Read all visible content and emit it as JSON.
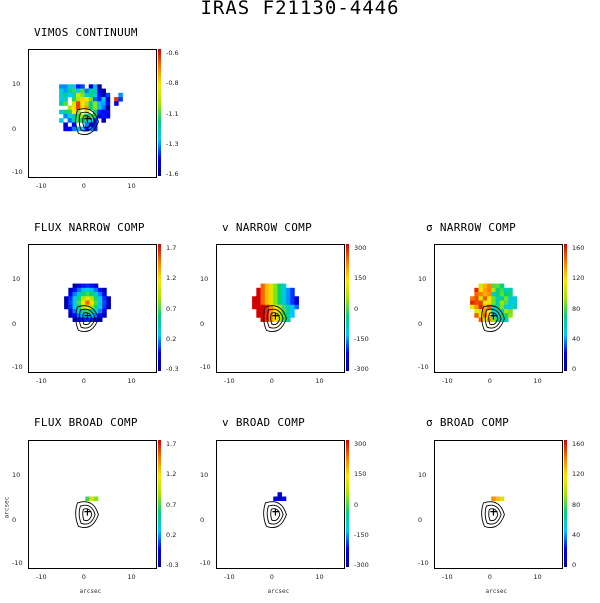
{
  "title": "IRAS F21130-4446",
  "axis_unit": "arcsec",
  "x_ticks": [
    "-10",
    "0",
    "10"
  ],
  "y_ticks": [
    "10",
    "0",
    "-10"
  ],
  "panels": [
    {
      "id": "vimos-continuum",
      "title": "VIMOS CONTINUUM",
      "cbar": [
        "-0.6",
        "-0.8",
        "-1.1",
        "-1.3",
        "-1.6"
      ],
      "map": "continuum",
      "contours": true
    },
    {
      "id": "flux-narrow",
      "title": "FLUX NARROW COMP",
      "cbar": [
        "1.7",
        "1.2",
        "0.7",
        "0.2",
        "-0.3"
      ],
      "map": "flux_narrow",
      "contours": true
    },
    {
      "id": "v-narrow",
      "title": "v NARROW COMP",
      "cbar": [
        "300",
        "150",
        "0",
        "-150",
        "-300"
      ],
      "map": "v_narrow",
      "contours": true
    },
    {
      "id": "sigma-narrow",
      "title": "σ NARROW COMP",
      "cbar": [
        "160",
        "120",
        "80",
        "40",
        "0"
      ],
      "map": "sigma_narrow",
      "contours": true
    },
    {
      "id": "flux-broad",
      "title": "FLUX BROAD COMP",
      "cbar": [
        "1.7",
        "1.2",
        "0.7",
        "0.2",
        "-0.3"
      ],
      "map": "flux_broad",
      "contours": true
    },
    {
      "id": "v-broad",
      "title": "v BROAD COMP",
      "cbar": [
        "300",
        "150",
        "0",
        "-150",
        "-300"
      ],
      "map": "v_broad",
      "contours": true
    },
    {
      "id": "sigma-broad",
      "title": "σ BROAD COMP",
      "cbar": [
        "160",
        "120",
        "80",
        "40",
        "0"
      ],
      "map": "sigma_broad",
      "contours": true
    }
  ]
}
